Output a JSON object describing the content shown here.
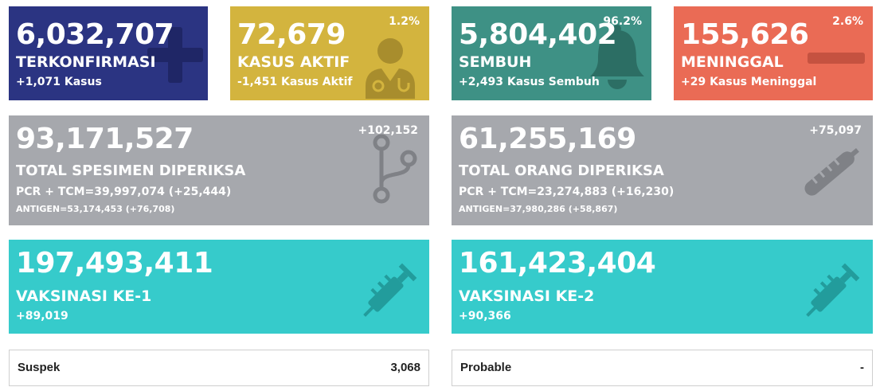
{
  "confirmed": {
    "value": "6,032,707",
    "label": "TERKONFIRMASI",
    "delta": "+1,071 Kasus",
    "color": "#2b3482"
  },
  "active": {
    "value": "72,679",
    "label": "KASUS AKTIF",
    "delta": "-1,451 Kasus Aktif",
    "percent": "1.2%",
    "color": "#d3b43e"
  },
  "recovered": {
    "value": "5,804,402",
    "label": "SEMBUH",
    "delta": "+2,493 Kasus Sembuh",
    "percent": "96.2%",
    "color": "#3e9185"
  },
  "deaths": {
    "value": "155,626",
    "label": "MENINGGAL",
    "delta": "+29 Kasus Meninggal",
    "percent": "2.6%",
    "color": "#ea6b55"
  },
  "specimens": {
    "value": "93,171,527",
    "label": "TOTAL SPESIMEN DIPERIKSA",
    "pcr": "PCR + TCM=39,997,074 (+25,444)",
    "antigen": "ANTIGEN=53,174,453 (+76,708)",
    "delta": "+102,152",
    "color": "#a6a8ad"
  },
  "people_tested": {
    "value": "61,255,169",
    "label": "TOTAL ORANG DIPERIKSA",
    "pcr": "PCR + TCM=23,274,883 (+16,230)",
    "antigen": "ANTIGEN=37,980,286 (+58,867)",
    "delta": "+75,097",
    "color": "#a6a8ad"
  },
  "vaccine1": {
    "value": "197,493,411",
    "label": "VAKSINASI KE-1",
    "delta": "+89,019",
    "color": "#36cbcb"
  },
  "vaccine2": {
    "value": "161,423,404",
    "label": "VAKSINASI KE-2",
    "delta": "+90,366",
    "color": "#36cbcb"
  },
  "suspect": {
    "label": "Suspek",
    "value": "3,068"
  },
  "probable": {
    "label": "Probable",
    "value": "-"
  },
  "icons": [
    "plus-icon",
    "doctor-icon",
    "bell-icon",
    "minus-icon",
    "branch-icon",
    "thermometer-icon",
    "syringe-icon"
  ]
}
